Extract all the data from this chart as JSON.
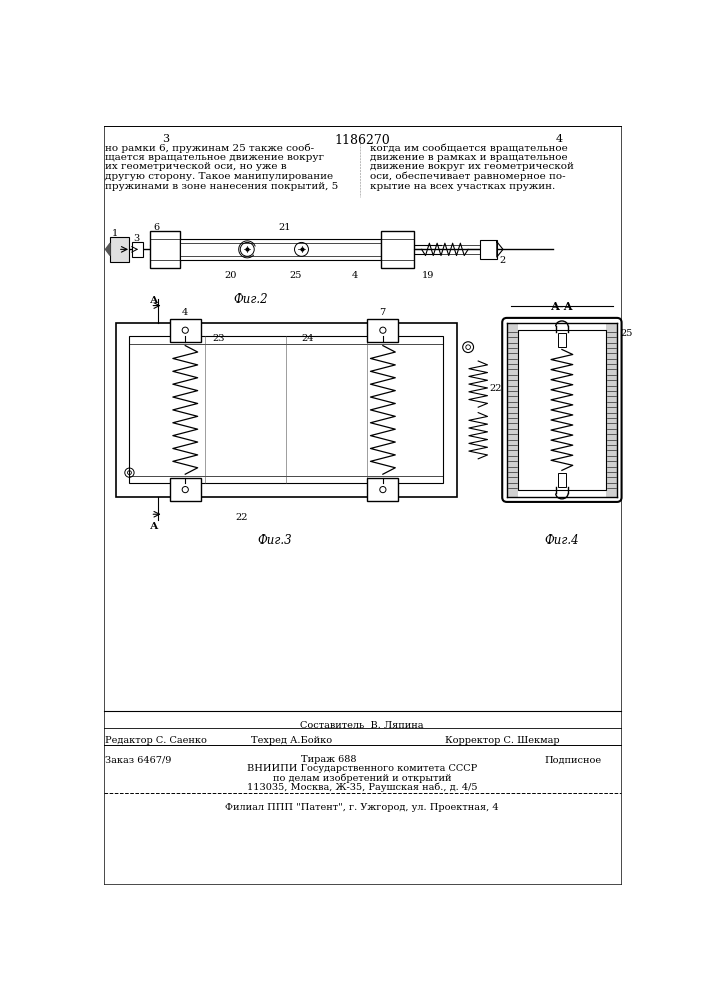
{
  "page_width": 7.07,
  "page_height": 10.0,
  "bg_color": "#ffffff",
  "header": {
    "left_page_num": "3",
    "center_title": "1186270",
    "right_page_num": "4"
  },
  "top_text_left": [
    "но рамки 6, пружинам 25 также сооб-",
    "щается вращательное движение вокруг",
    "их геометрической оси, но уже в",
    "другую сторону. Такое манипулирование",
    "пружинами в зоне нанесения покрытий, 5"
  ],
  "top_text_right": [
    "когда им сообщается вращательное",
    "движение в рамках и вращательное",
    "движение вокруг их геометрической",
    "оси, обеспечивает равномерное по-",
    "крытие на всех участках пружин."
  ],
  "fig2_caption": "Фиг.2",
  "fig3_caption": "Фиг.3",
  "fig4_caption": "Фиг.4",
  "line_color": "#000000",
  "text_color": "#000000"
}
